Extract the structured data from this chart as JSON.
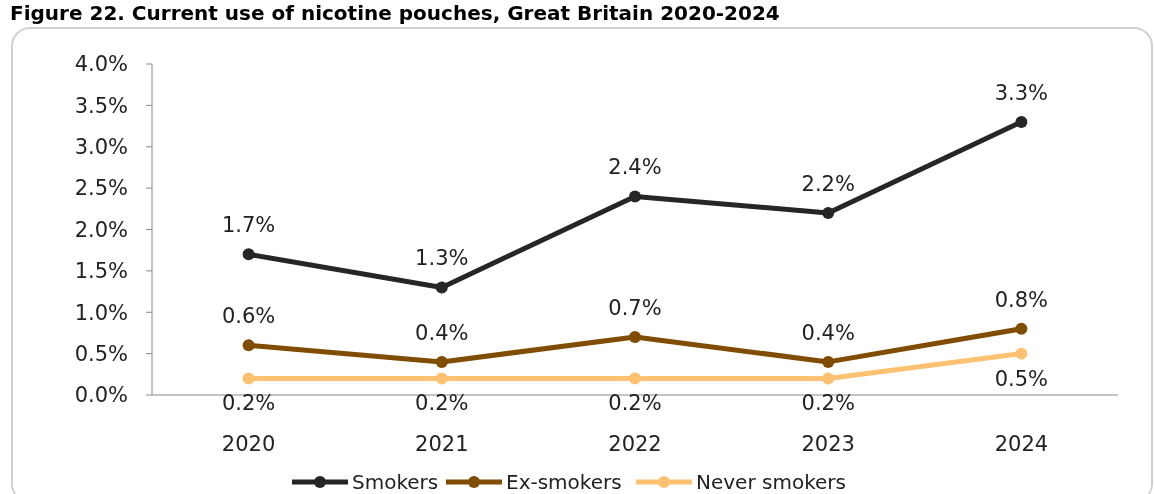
{
  "chart_data": {
    "type": "line",
    "title": "Figure 22. Current use of nicotine pouches, Great Britain 2020-2024",
    "categories": [
      "2020",
      "2021",
      "2022",
      "2023",
      "2024"
    ],
    "series": [
      {
        "name": "Smokers",
        "color": "#262626",
        "values": [
          1.7,
          1.3,
          2.4,
          2.2,
          3.3
        ],
        "value_labels": [
          "1.7%",
          "1.3%",
          "2.4%",
          "2.2%",
          "3.3%"
        ]
      },
      {
        "name": "Ex-smokers",
        "color": "#7f4c00",
        "values": [
          0.6,
          0.4,
          0.7,
          0.4,
          0.8
        ],
        "value_labels": [
          "0.6%",
          "0.4%",
          "0.7%",
          "0.4%",
          "0.8%"
        ]
      },
      {
        "name": "Never smokers",
        "color": "#fdc172",
        "values": [
          0.2,
          0.2,
          0.2,
          0.2,
          0.5
        ],
        "value_labels": [
          "0.2%",
          "0.2%",
          "0.2%",
          "0.2%",
          "0.5%"
        ]
      }
    ],
    "ylim": [
      0,
      4
    ],
    "yticks": [
      {
        "value": 0,
        "label": "0.0%"
      },
      {
        "value": 0.5,
        "label": "0.5%"
      },
      {
        "value": 1,
        "label": "1.0%"
      },
      {
        "value": 1.5,
        "label": "1.5%"
      },
      {
        "value": 2,
        "label": "2.0%"
      },
      {
        "value": 2.5,
        "label": "2.5%"
      },
      {
        "value": 3,
        "label": "3.0%"
      },
      {
        "value": 3.5,
        "label": "3.5%"
      },
      {
        "value": 4,
        "label": "4.0%"
      }
    ],
    "grid": false,
    "legend": "bottom",
    "marker": "circle",
    "line_style": "solid"
  }
}
